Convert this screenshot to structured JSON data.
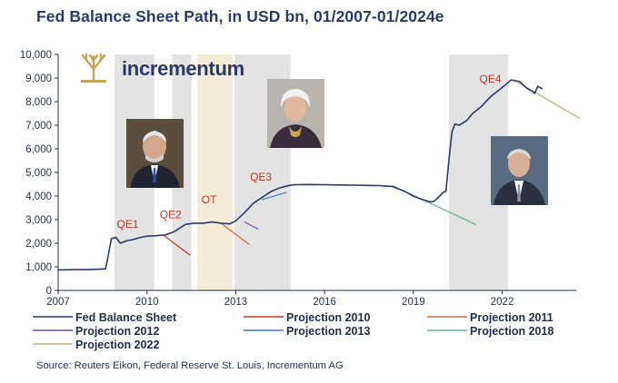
{
  "title": "Fed Balance Sheet Path, in USD bn, 01/2007-01/2024e",
  "source": "Source: Reuters Eikon, Federal Reserve St. Louis, Incrementum AG",
  "brand": {
    "name": "incrementum"
  },
  "portraits": [
    {
      "name": "bernanke-portrait",
      "icon": "person-portrait"
    },
    {
      "name": "yellen-portrait",
      "icon": "person-portrait"
    },
    {
      "name": "powell-portrait",
      "icon": "person-portrait"
    }
  ],
  "chart_data": {
    "type": "line",
    "title": "Fed Balance Sheet Path, in USD bn, 01/2007-01/2024e",
    "xlim": [
      2007,
      2024.5
    ],
    "ylim": [
      0,
      10000
    ],
    "x_ticks": [
      2007,
      2010,
      2013,
      2016,
      2019,
      2022
    ],
    "y_ticks": [
      {
        "v": 0,
        "label": "0"
      },
      {
        "v": 1000,
        "label": "1,000"
      },
      {
        "v": 2000,
        "label": "2,000"
      },
      {
        "v": 3000,
        "label": "3,000"
      },
      {
        "v": 4000,
        "label": "4,000"
      },
      {
        "v": 5000,
        "label": "5,000"
      },
      {
        "v": 6000,
        "label": "6,000"
      },
      {
        "v": 7000,
        "label": "7,000"
      },
      {
        "v": 8000,
        "label": "8,000"
      },
      {
        "v": 9000,
        "label": "9,000"
      },
      {
        "v": 10000,
        "label": "10,000"
      }
    ],
    "periods": [
      {
        "label": "QE1",
        "start": 2008.9,
        "end": 2010.25,
        "shade": "#e3e3e3",
        "label_x": 2009.35,
        "label_y": 2650
      },
      {
        "label": "QE2",
        "start": 2010.85,
        "end": 2011.5,
        "shade": "#e3e3e3",
        "label_x": 2010.8,
        "label_y": 3050
      },
      {
        "label": "OT",
        "start": 2011.7,
        "end": 2012.9,
        "shade": "#f4ecd9",
        "label_x": 2012.1,
        "label_y": 3700
      },
      {
        "label": "QE3",
        "start": 2012.95,
        "end": 2014.85,
        "shade": "#e3e3e3",
        "label_x": 2013.85,
        "label_y": 4650
      },
      {
        "label": "QE4",
        "start": 2020.2,
        "end": 2022.2,
        "shade": "#e3e3e3",
        "label_x": 2021.6,
        "label_y": 8800
      }
    ],
    "series": [
      {
        "name": "Fed Balance Sheet",
        "color": "#2b3a67",
        "width": 1.6,
        "x": [
          2007.0,
          2007.5,
          2008.0,
          2008.6,
          2008.68,
          2008.8,
          2008.95,
          2009.1,
          2009.3,
          2009.5,
          2009.8,
          2010.0,
          2010.3,
          2010.6,
          2010.85,
          2011.0,
          2011.3,
          2011.6,
          2011.9,
          2012.2,
          2012.5,
          2012.8,
          2013.0,
          2013.3,
          2013.6,
          2013.9,
          2014.2,
          2014.5,
          2014.8,
          2015.0,
          2015.5,
          2016.0,
          2016.5,
          2017.0,
          2017.5,
          2017.9,
          2018.3,
          2018.7,
          2019.0,
          2019.3,
          2019.6,
          2019.7,
          2019.85,
          2020.0,
          2020.1,
          2020.2,
          2020.3,
          2020.4,
          2020.55,
          2020.8,
          2021.0,
          2021.3,
          2021.6,
          2021.9,
          2022.1,
          2022.3,
          2022.6,
          2022.8,
          2023.0,
          2023.1,
          2023.2,
          2023.35
        ],
        "y": [
          870,
          880,
          880,
          910,
          1400,
          2200,
          2250,
          2000,
          2100,
          2150,
          2250,
          2300,
          2320,
          2350,
          2450,
          2550,
          2800,
          2850,
          2850,
          2900,
          2850,
          2820,
          2950,
          3300,
          3700,
          3950,
          4200,
          4350,
          4450,
          4480,
          4490,
          4480,
          4470,
          4460,
          4450,
          4440,
          4400,
          4200,
          4000,
          3850,
          3750,
          3780,
          3950,
          4150,
          4200,
          5500,
          6700,
          7050,
          7000,
          7200,
          7500,
          7800,
          8200,
          8500,
          8700,
          8920,
          8850,
          8600,
          8450,
          8350,
          8650,
          8550
        ]
      },
      {
        "name": "Projection 2010",
        "color": "#c0392b",
        "width": 1.2,
        "x": [
          2010.55,
          2011.45
        ],
        "y": [
          2350,
          1500
        ]
      },
      {
        "name": "Projection 2011",
        "color": "#cf6a3c",
        "width": 1.2,
        "x": [
          2012.5,
          2013.45
        ],
        "y": [
          2850,
          1950
        ]
      },
      {
        "name": "Projection 2012",
        "color": "#7a4bb5",
        "width": 1.2,
        "x": [
          2013.3,
          2013.75
        ],
        "y": [
          2900,
          2600
        ]
      },
      {
        "name": "Projection 2013",
        "color": "#3a78c2",
        "width": 1.2,
        "x": [
          2013.9,
          2014.7
        ],
        "y": [
          3850,
          4150
        ]
      },
      {
        "name": "Projection 2018",
        "color": "#6fae8a",
        "width": 1.2,
        "x": [
          2018.3,
          2021.1
        ],
        "y": [
          4430,
          2800
        ]
      },
      {
        "name": "Projection 2022",
        "color": "#c4b485",
        "width": 1.4,
        "x": [
          2022.4,
          2024.6
        ],
        "y": [
          8920,
          7300
        ]
      }
    ],
    "legend": [
      {
        "label": "Fed Balance Sheet",
        "color": "#2b3a67"
      },
      {
        "label": "Projection 2010",
        "color": "#c0392b"
      },
      {
        "label": "Projection 2011",
        "color": "#cf6a3c"
      },
      {
        "label": "Projection 2012",
        "color": "#7a4bb5"
      },
      {
        "label": "Projection 2013",
        "color": "#3a78c2"
      },
      {
        "label": "Projection 2018",
        "color": "#6fae8a"
      },
      {
        "label": "Projection 2022",
        "color": "#c4b485"
      }
    ]
  }
}
